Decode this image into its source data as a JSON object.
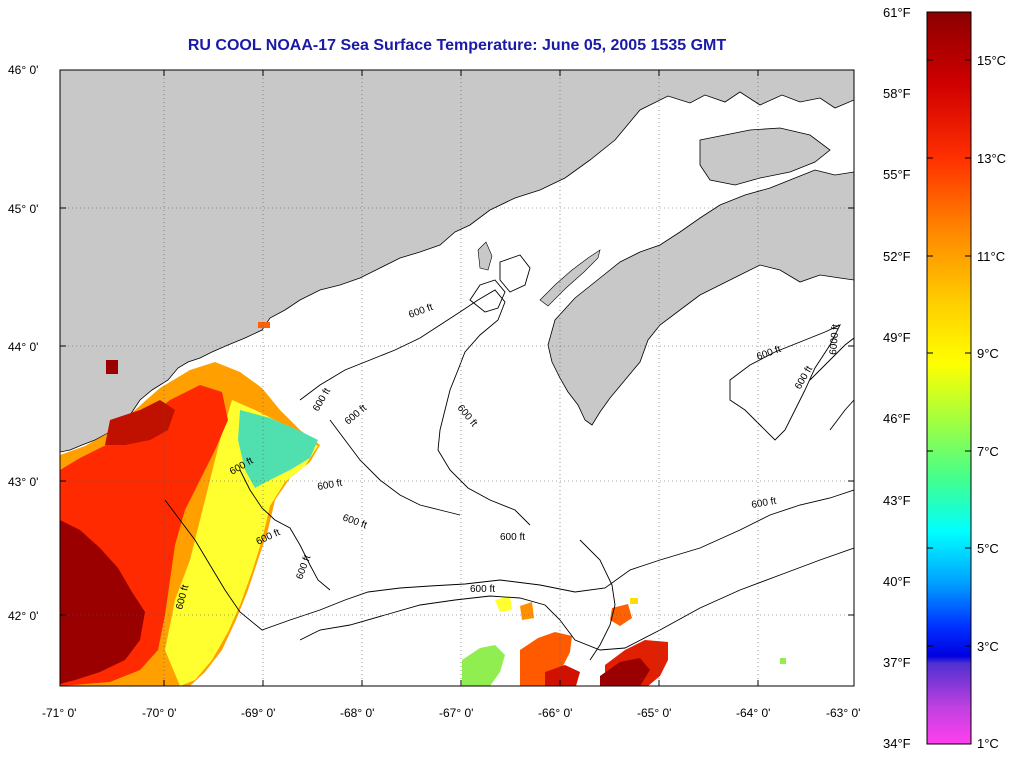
{
  "title": "RU COOL  NOAA-17  Sea Surface Temperature:  June 05, 2005 1535 GMT",
  "map": {
    "lat_labels": [
      "46° 0'",
      "45° 0'",
      "44° 0'",
      "43° 0'",
      "42° 0'"
    ],
    "lon_labels": [
      "-71° 0'",
      "-70° 0'",
      "-69° 0'",
      "-68° 0'",
      "-67° 0'",
      "-66° 0'",
      "-65° 0'",
      "-64° 0'",
      "-63° 0'"
    ],
    "contour_labels": [
      "600 ft",
      "600 ft",
      "600 ft",
      "600 ft",
      "600 ft",
      "600 ft",
      "600 ft",
      "600 ft",
      "600 ft",
      "600 ft",
      "600 ft",
      "600 ft",
      "600 ft",
      "600 ft",
      "600 ft",
      "6000 ft"
    ],
    "colors": {
      "land": "#c8c8c8",
      "ocean_nodata": "#ffffff",
      "sst_warmest": "#8b0000",
      "sst_warm": "#ff2000",
      "sst_mid": "#ffa000",
      "sst_cool": "#ffff20",
      "sst_cold": "#50e0c0"
    }
  },
  "colorbar": {
    "fahrenheit_labels": [
      "61°F",
      "58°F",
      "55°F",
      "52°F",
      "49°F",
      "46°F",
      "43°F",
      "40°F",
      "37°F",
      "34°F"
    ],
    "celsius_labels": [
      "15°C",
      "13°C",
      "11°C",
      "9°C",
      "7°C",
      "5°C",
      "3°C",
      "1°C"
    ]
  }
}
